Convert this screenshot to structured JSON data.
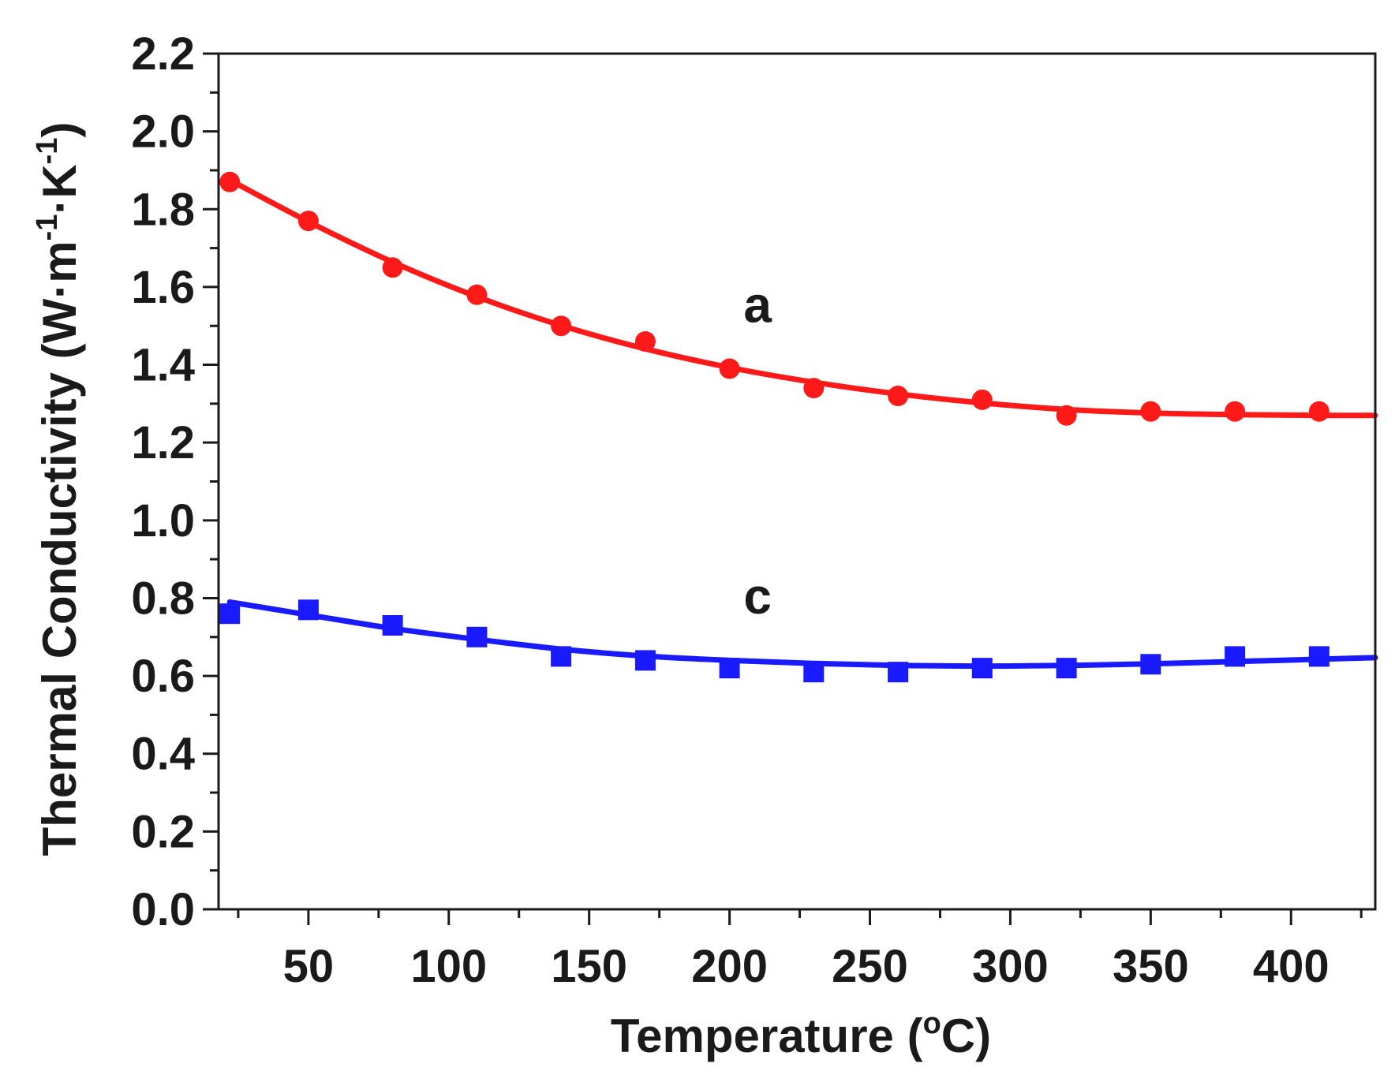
{
  "chart_data": {
    "type": "scatter",
    "title": "",
    "xlabel": "Temperature (°C)",
    "xlabel_parts": {
      "prefix": "Temperature (",
      "sup": "o",
      "suffix": "C)"
    },
    "ylabel": "Thermal Conductivity (W·m⁻¹·K⁻¹)",
    "ylabel_parts": {
      "prefix": "Thermal Conductivity (W·m",
      "sup1": "-1",
      "mid": "·K",
      "sup2": "-1",
      "suffix": ")"
    },
    "xlim": [
      18,
      430
    ],
    "ylim": [
      0.0,
      2.2
    ],
    "xticks": [
      50,
      100,
      150,
      200,
      250,
      300,
      350,
      400
    ],
    "xtick_labels": [
      "50",
      "100",
      "150",
      "200",
      "250",
      "300",
      "350",
      "400"
    ],
    "xminor": [
      25,
      75,
      125,
      175,
      225,
      275,
      325,
      375,
      425
    ],
    "yticks": [
      0.0,
      0.2,
      0.4,
      0.6,
      0.8,
      1.0,
      1.2,
      1.4,
      1.6,
      1.8,
      2.0,
      2.2
    ],
    "ytick_labels": [
      "0.0",
      "0.2",
      "0.4",
      "0.6",
      "0.8",
      "1.0",
      "1.2",
      "1.4",
      "1.6",
      "1.8",
      "2.0",
      "2.2"
    ],
    "yminor": [
      0.1,
      0.3,
      0.5,
      0.7,
      0.9,
      1.1,
      1.3,
      1.5,
      1.7,
      1.9,
      2.1
    ],
    "grid": false,
    "series": [
      {
        "name": "a",
        "color": "#ff1a1a",
        "marker": "circle",
        "x": [
          22,
          50,
          80,
          110,
          140,
          170,
          200,
          230,
          260,
          290,
          320,
          350,
          380,
          410
        ],
        "y": [
          1.87,
          1.77,
          1.65,
          1.58,
          1.5,
          1.46,
          1.39,
          1.34,
          1.32,
          1.31,
          1.27,
          1.28,
          1.28,
          1.28
        ],
        "fit_x": [
          22,
          50,
          80,
          110,
          140,
          170,
          200,
          230,
          260,
          290,
          320,
          350,
          380,
          410,
          430
        ],
        "fit_y": [
          1.875,
          1.768,
          1.664,
          1.575,
          1.501,
          1.441,
          1.393,
          1.355,
          1.325,
          1.302,
          1.285,
          1.276,
          1.272,
          1.27,
          1.27
        ],
        "label": "a",
        "label_x": 210,
        "label_y": 1.51
      },
      {
        "name": "c",
        "color": "#1a1aff",
        "marker": "square",
        "x": [
          22,
          50,
          80,
          110,
          140,
          170,
          200,
          230,
          260,
          290,
          320,
          350,
          380,
          410
        ],
        "y": [
          0.76,
          0.77,
          0.73,
          0.7,
          0.65,
          0.64,
          0.62,
          0.61,
          0.61,
          0.62,
          0.62,
          0.63,
          0.65,
          0.65
        ],
        "fit_x": [
          22,
          50,
          80,
          110,
          140,
          170,
          200,
          230,
          260,
          290,
          320,
          350,
          380,
          410,
          430
        ],
        "fit_y": [
          0.79,
          0.757,
          0.722,
          0.694,
          0.669,
          0.651,
          0.64,
          0.632,
          0.627,
          0.625,
          0.627,
          0.631,
          0.637,
          0.643,
          0.647
        ],
        "label": "c",
        "label_x": 210,
        "label_y": 0.76
      }
    ]
  }
}
